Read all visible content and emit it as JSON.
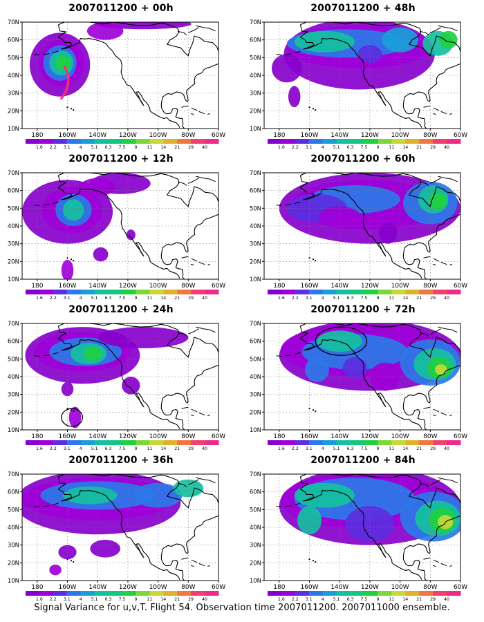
{
  "map_axes": {
    "lat_labels": [
      "10N",
      "20N",
      "30N",
      "40N",
      "50N",
      "60N",
      "70N"
    ],
    "lon_labels": [
      "180",
      "160W",
      "140W",
      "120W",
      "100W",
      "80W",
      "60W"
    ]
  },
  "colorbar": {
    "tick_labels": [
      "1.6",
      "2.2",
      "3.1",
      "4",
      "5.1",
      "6.3",
      "7.5",
      "9",
      "11",
      "14",
      "21",
      "29",
      "40"
    ],
    "colors": [
      "#8800cc",
      "#a000d8",
      "#5c2ee0",
      "#2c78e8",
      "#1a9ed8",
      "#15c0a0",
      "#12c87e",
      "#20d040",
      "#7cd838",
      "#c8d838",
      "#e0b030",
      "#f07840",
      "#f04070",
      "#ee2a8a"
    ]
  },
  "panels": [
    {
      "title": "2007011200 + 00h"
    },
    {
      "title": "2007011200 + 48h"
    },
    {
      "title": "2007011200 + 12h"
    },
    {
      "title": "2007011200 + 60h"
    },
    {
      "title": "2007011200 + 24h"
    },
    {
      "title": "2007011200 + 72h"
    },
    {
      "title": "2007011200 + 36h"
    },
    {
      "title": "2007011200 + 84h"
    }
  ],
  "footer": "Signal Variance for u,v,T. Flight 54. Observation time 2007011200. 2007011000 ensemble."
}
